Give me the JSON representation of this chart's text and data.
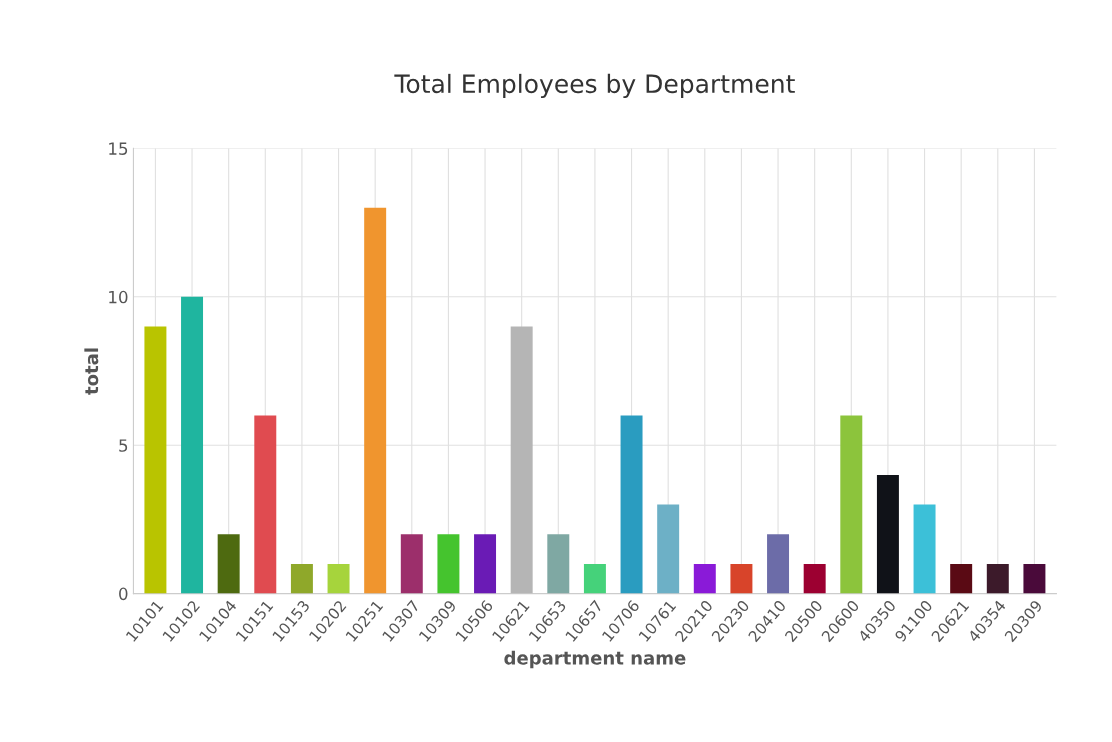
{
  "chart_data": {
    "type": "bar",
    "title": "Total Employees by Department",
    "xlabel": "department name",
    "ylabel": "total",
    "categories": [
      "10101",
      "10102",
      "10104",
      "10151",
      "10153",
      "10202",
      "10251",
      "10307",
      "10309",
      "10506",
      "10621",
      "10653",
      "10657",
      "10706",
      "10761",
      "20210",
      "20230",
      "20410",
      "20500",
      "20600",
      "40350",
      "91100",
      "20621",
      "40354",
      "20309"
    ],
    "values": [
      9,
      10,
      2,
      6,
      1,
      1,
      13,
      2,
      2,
      2,
      9,
      2,
      1,
      6,
      3,
      1,
      1,
      2,
      1,
      6,
      4,
      3,
      1,
      1,
      1
    ],
    "colors": [
      "#b9c400",
      "#1fb59f",
      "#4e6a10",
      "#e04b50",
      "#8fa82a",
      "#a6d43c",
      "#f0952e",
      "#9c2f6b",
      "#45c42e",
      "#6a1bb5",
      "#b5b5b5",
      "#7fa8a3",
      "#45d27a",
      "#2a9cc0",
      "#6db0c6",
      "#8a1ad8",
      "#d8442a",
      "#6c6ca8",
      "#9c0031",
      "#8cc43c",
      "#101218",
      "#3cc0d8",
      "#5a0a14",
      "#3c1a2a",
      "#4a0a3a"
    ],
    "ylim": [
      0,
      15
    ],
    "yticks": [
      0,
      5,
      10,
      15
    ],
    "grid": true
  }
}
